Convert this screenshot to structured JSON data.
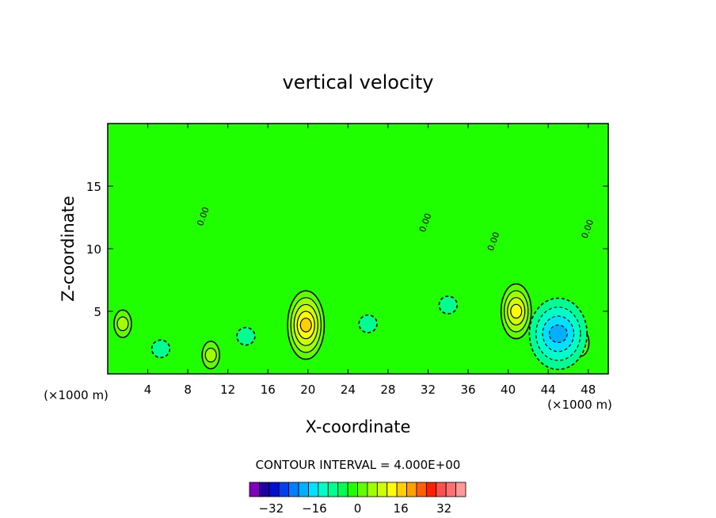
{
  "chart_data": {
    "type": "heatmap",
    "title": "vertical velocity",
    "xlabel": "X-coordinate",
    "ylabel": "Z-coordinate",
    "x_unit": "(×1000 m)",
    "y_unit": "(×1000 m)",
    "xlim": [
      0,
      50
    ],
    "ylim": [
      0,
      20
    ],
    "x_ticks": [
      4,
      8,
      12,
      16,
      20,
      24,
      28,
      32,
      36,
      40,
      44,
      48
    ],
    "y_ticks": [
      5,
      10,
      15
    ],
    "contour_interval_text": "CONTOUR INTERVAL = 4.000E+00",
    "contour_interval": 4,
    "zero_contour_label": "0.00",
    "colorbar": {
      "levels": [
        -36,
        -32,
        -28,
        -24,
        -20,
        -16,
        -12,
        -8,
        -4,
        0,
        4,
        8,
        12,
        16,
        20,
        24,
        28,
        32,
        36
      ],
      "tick_labels": [
        "−32",
        "−16",
        "0",
        "16",
        "32"
      ],
      "tick_values": [
        -32,
        -16,
        0,
        16,
        32
      ],
      "colors": [
        "#8000c0",
        "#2000a0",
        "#0010d0",
        "#0040f0",
        "#0080ff",
        "#00b0ff",
        "#00e0ff",
        "#00ffc8",
        "#00ff90",
        "#00ff50",
        "#20ff00",
        "#60ff00",
        "#a0ff00",
        "#d0ff00",
        "#ffff00",
        "#ffd000",
        "#ffa000",
        "#ff6000",
        "#ff2000",
        "#ff5050",
        "#ff7070",
        "#ff9898"
      ]
    },
    "background_level": 0,
    "features": [
      {
        "kind": "updraft",
        "x": 19.8,
        "z": 3.9,
        "peak": 20
      },
      {
        "kind": "updraft",
        "x": 40.8,
        "z": 5.0,
        "peak": 16
      },
      {
        "kind": "updraft",
        "x": 1.5,
        "z": 4.0,
        "peak": 8
      },
      {
        "kind": "updraft",
        "x": 10.3,
        "z": 1.5,
        "peak": 8
      },
      {
        "kind": "updraft",
        "x": 47.2,
        "z": 2.5,
        "peak": 8
      },
      {
        "kind": "downdraft",
        "x": 45.0,
        "z": 3.2,
        "peak": -16
      },
      {
        "kind": "downdraft",
        "x": 26.0,
        "z": 4.0,
        "peak": -4
      },
      {
        "kind": "downdraft",
        "x": 34.0,
        "z": 5.5,
        "peak": -4
      },
      {
        "kind": "downdraft",
        "x": 13.8,
        "z": 3.0,
        "peak": -4
      },
      {
        "kind": "downdraft",
        "x": 5.3,
        "z": 2.0,
        "peak": -4
      }
    ]
  }
}
